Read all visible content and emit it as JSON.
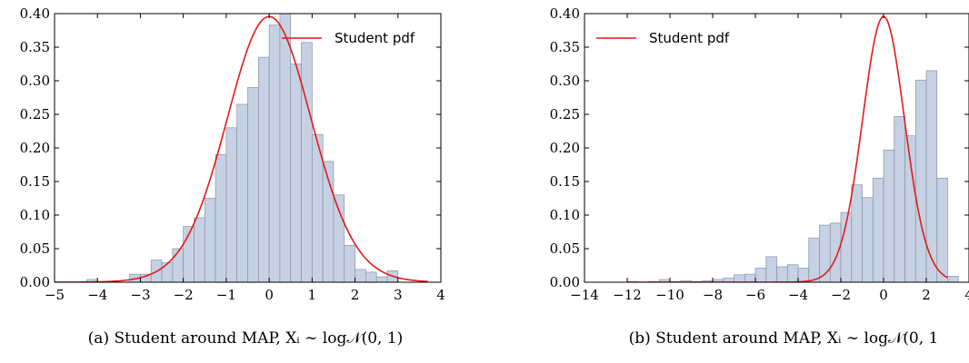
{
  "charts": [
    {
      "panel": "a",
      "caption": "(a) Student around MAP, Xᵢ ∼ log𝒩(0, 1)",
      "legend_label": "Student pdf",
      "legend_position": "top-right",
      "curve_color": "#e41a1c",
      "bar_color": "#c6d1e3",
      "bar_edge_color": "#8a93a6",
      "x_ticks": [
        "−5",
        "−4",
        "−3",
        "−2",
        "−1",
        "0",
        "1",
        "2",
        "3",
        "4"
      ],
      "y_ticks": [
        "0.00",
        "0.05",
        "0.10",
        "0.15",
        "0.20",
        "0.25",
        "0.30",
        "0.35",
        "0.40"
      ]
    },
    {
      "panel": "b",
      "caption": "(b) Student around MAP, Xᵢ ∼ log𝒩(0, 1",
      "legend_label": "Student pdf",
      "legend_position": "top-left",
      "curve_color": "#e41a1c",
      "bar_color": "#c6d1e3",
      "bar_edge_color": "#8a93a6",
      "x_ticks": [
        "−14",
        "−12",
        "−10",
        "−8",
        "−6",
        "−4",
        "−2",
        "0",
        "2",
        "4"
      ],
      "y_ticks": [
        "0.00",
        "0.05",
        "0.10",
        "0.15",
        "0.20",
        "0.25",
        "0.30",
        "0.35",
        "0.40"
      ]
    }
  ],
  "chart_data": [
    {
      "type": "bar",
      "subtype": "histogram",
      "xlim": [
        -5,
        4
      ],
      "ylim": [
        0,
        0.4
      ],
      "grid": false,
      "bin_width": 0.25,
      "bins": [
        {
          "x0": -4.25,
          "value": 0.004
        },
        {
          "x0": -3.25,
          "value": 0.012
        },
        {
          "x0": -3.0,
          "value": 0.012
        },
        {
          "x0": -2.75,
          "value": 0.033
        },
        {
          "x0": -2.5,
          "value": 0.029
        },
        {
          "x0": -2.25,
          "value": 0.05
        },
        {
          "x0": -2.0,
          "value": 0.083
        },
        {
          "x0": -1.75,
          "value": 0.096
        },
        {
          "x0": -1.5,
          "value": 0.125
        },
        {
          "x0": -1.25,
          "value": 0.19
        },
        {
          "x0": -1.0,
          "value": 0.23
        },
        {
          "x0": -0.75,
          "value": 0.265
        },
        {
          "x0": -0.5,
          "value": 0.29
        },
        {
          "x0": -0.25,
          "value": 0.335
        },
        {
          "x0": 0.0,
          "value": 0.383
        },
        {
          "x0": 0.25,
          "value": 0.41
        },
        {
          "x0": 0.5,
          "value": 0.325
        },
        {
          "x0": 0.75,
          "value": 0.357
        },
        {
          "x0": 1.0,
          "value": 0.22
        },
        {
          "x0": 1.25,
          "value": 0.18
        },
        {
          "x0": 1.5,
          "value": 0.13
        },
        {
          "x0": 1.75,
          "value": 0.055
        },
        {
          "x0": 2.0,
          "value": 0.019
        },
        {
          "x0": 2.25,
          "value": 0.015
        },
        {
          "x0": 2.5,
          "value": 0.008
        },
        {
          "x0": 2.75,
          "value": 0.017
        }
      ],
      "curve": {
        "kind": "student-t pdf",
        "df": 30,
        "x_range": [
          -5,
          3.7
        ],
        "legend": "Student pdf"
      }
    },
    {
      "type": "bar",
      "subtype": "histogram",
      "xlim": [
        -14,
        4
      ],
      "ylim": [
        0,
        0.4
      ],
      "grid": false,
      "bin_width": 0.5,
      "bins": [
        {
          "x0": -12.0,
          "value": 0.001
        },
        {
          "x0": -11.0,
          "value": 0.001
        },
        {
          "x0": -10.5,
          "value": 0.004
        },
        {
          "x0": -10.0,
          "value": 0.001
        },
        {
          "x0": -9.5,
          "value": 0.002
        },
        {
          "x0": -9.0,
          "value": 0.001
        },
        {
          "x0": -8.5,
          "value": 0.002
        },
        {
          "x0": -8.0,
          "value": 0.004
        },
        {
          "x0": -7.5,
          "value": 0.006
        },
        {
          "x0": -7.0,
          "value": 0.011
        },
        {
          "x0": -6.5,
          "value": 0.012
        },
        {
          "x0": -6.0,
          "value": 0.021
        },
        {
          "x0": -5.5,
          "value": 0.038
        },
        {
          "x0": -5.0,
          "value": 0.023
        },
        {
          "x0": -4.5,
          "value": 0.026
        },
        {
          "x0": -4.0,
          "value": 0.021
        },
        {
          "x0": -3.5,
          "value": 0.066
        },
        {
          "x0": -3.0,
          "value": 0.085
        },
        {
          "x0": -2.5,
          "value": 0.088
        },
        {
          "x0": -2.0,
          "value": 0.104
        },
        {
          "x0": -1.5,
          "value": 0.145
        },
        {
          "x0": -1.0,
          "value": 0.126
        },
        {
          "x0": -0.5,
          "value": 0.155
        },
        {
          "x0": 0.0,
          "value": 0.197
        },
        {
          "x0": 0.5,
          "value": 0.247
        },
        {
          "x0": 1.0,
          "value": 0.218
        },
        {
          "x0": 1.5,
          "value": 0.301
        },
        {
          "x0": 2.0,
          "value": 0.315
        },
        {
          "x0": 2.5,
          "value": 0.155
        },
        {
          "x0": 3.0,
          "value": 0.009
        }
      ],
      "curve": {
        "kind": "student-t pdf",
        "df": 30,
        "x_range": [
          -12.0,
          3.0
        ],
        "legend": "Student pdf"
      }
    }
  ]
}
